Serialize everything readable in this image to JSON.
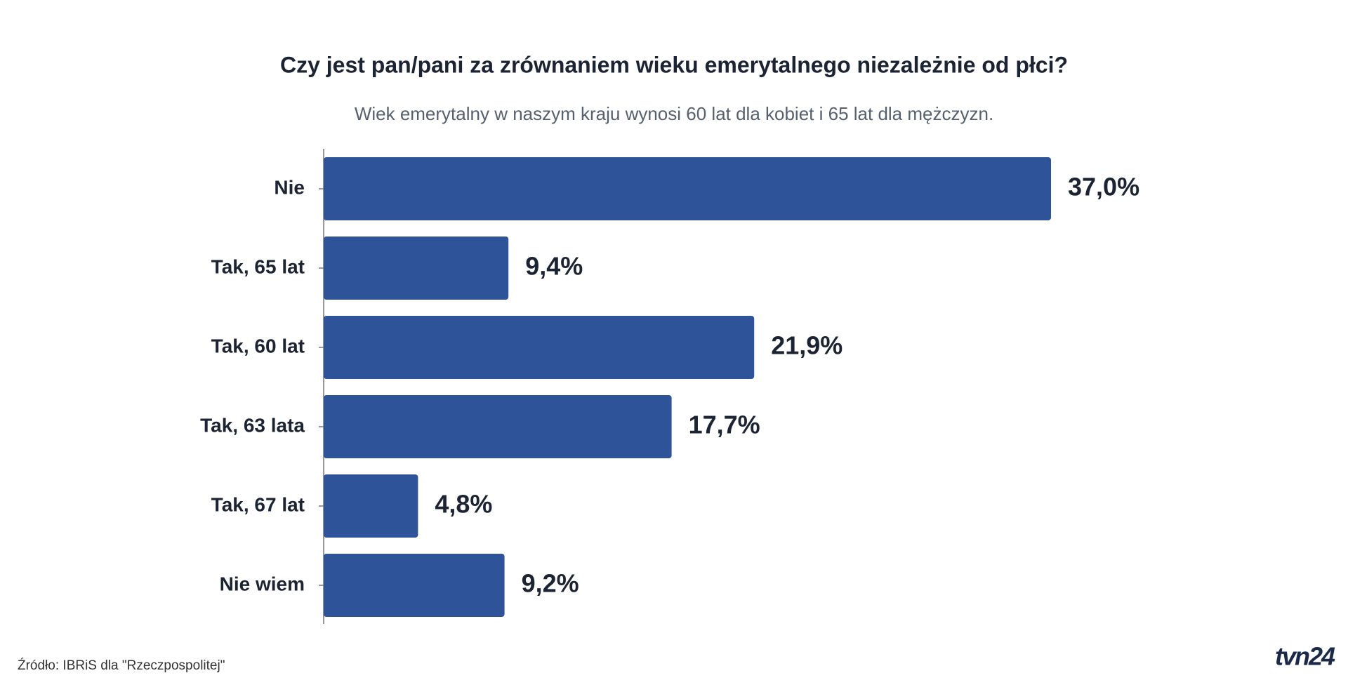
{
  "chart_data": {
    "type": "bar",
    "orientation": "horizontal",
    "title": "Czy jest pan/pani za zrównaniem wieku emerytalnego niezależnie od płci?",
    "subtitle": "Wiek emerytalny w naszym kraju wynosi 60 lat dla kobiet i 65 lat dla mężczyzn.",
    "categories": [
      "Nie",
      "Tak, 65 lat",
      "Tak, 60 lat",
      "Tak, 63 lata",
      "Tak, 67 lat",
      "Nie wiem"
    ],
    "values": [
      37.0,
      9.4,
      21.9,
      17.7,
      4.8,
      9.2
    ],
    "value_labels": [
      "37,0%",
      "9,4%",
      "21,9%",
      "17,7%",
      "4,8%",
      "9,2%"
    ],
    "color": "#2e5399",
    "source": "Źródło: IBRiS dla \"Rzeczpospolitej\"",
    "logo": "tvn24"
  }
}
